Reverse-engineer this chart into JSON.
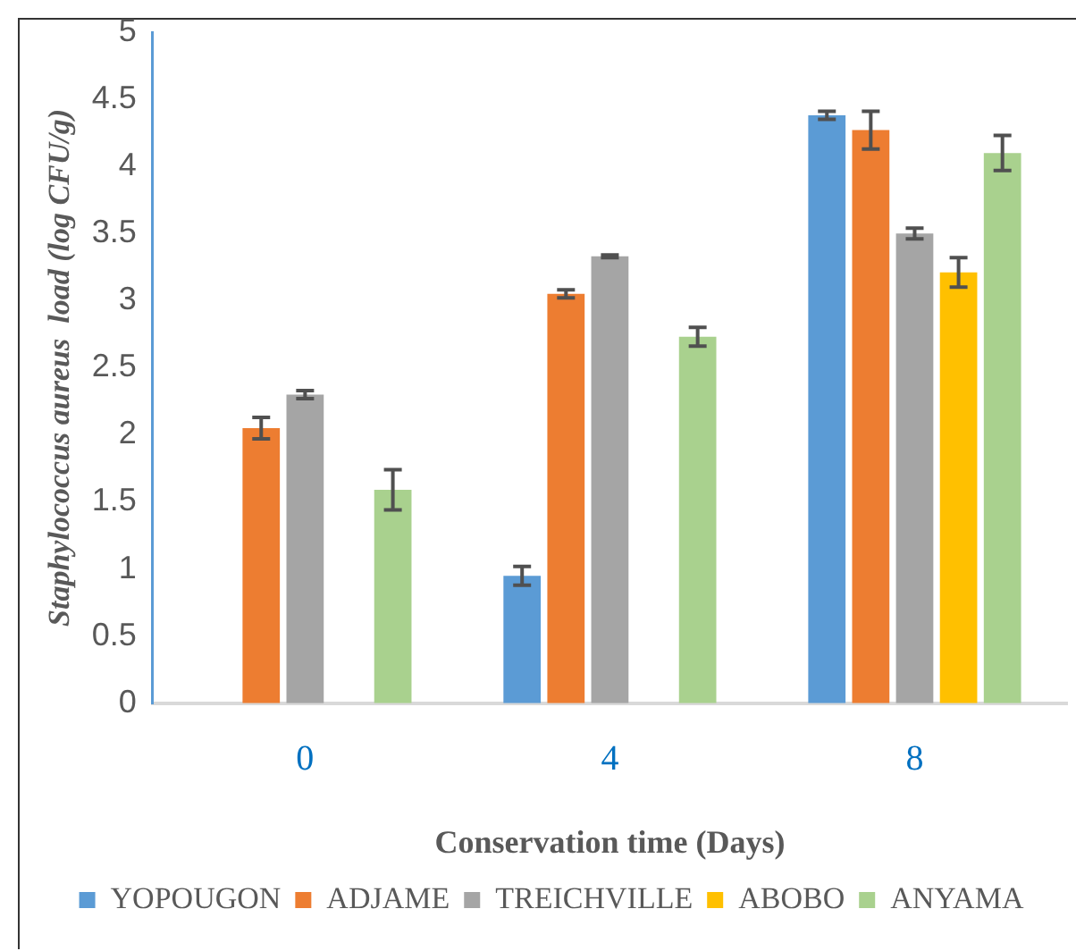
{
  "chart_data": {
    "type": "bar",
    "xlabel": "Conservation time (Days)",
    "ylabel": "Staphylococcus aureus  load (log CFU/g)",
    "categories": [
      "0",
      "4",
      "8"
    ],
    "series": [
      {
        "name": "YOPOUGON",
        "color": "#5b9bd5",
        "values": [
          null,
          0.95,
          4.38
        ],
        "errors": [
          null,
          0.07,
          0.03
        ]
      },
      {
        "name": "ADJAME",
        "color": "#ed7d31",
        "values": [
          2.05,
          3.05,
          4.27
        ],
        "errors": [
          0.08,
          0.03,
          0.14
        ]
      },
      {
        "name": "TREICHVILLE",
        "color": "#a5a5a5",
        "values": [
          2.3,
          3.33,
          3.5
        ],
        "errors": [
          0.03,
          0.01,
          0.04
        ]
      },
      {
        "name": "ABOBO",
        "color": "#ffc000",
        "values": [
          null,
          null,
          3.21
        ],
        "errors": [
          null,
          null,
          0.11
        ]
      },
      {
        "name": "ANYAMA",
        "color": "#a9d18e",
        "values": [
          1.59,
          2.73,
          4.1
        ],
        "errors": [
          0.15,
          0.07,
          0.13
        ]
      }
    ],
    "ylim": [
      0,
      5
    ],
    "yticks": [
      0,
      0.5,
      1,
      1.5,
      2,
      2.5,
      3,
      3.5,
      4,
      4.5,
      5
    ],
    "grid": false,
    "legend": "bottom"
  }
}
